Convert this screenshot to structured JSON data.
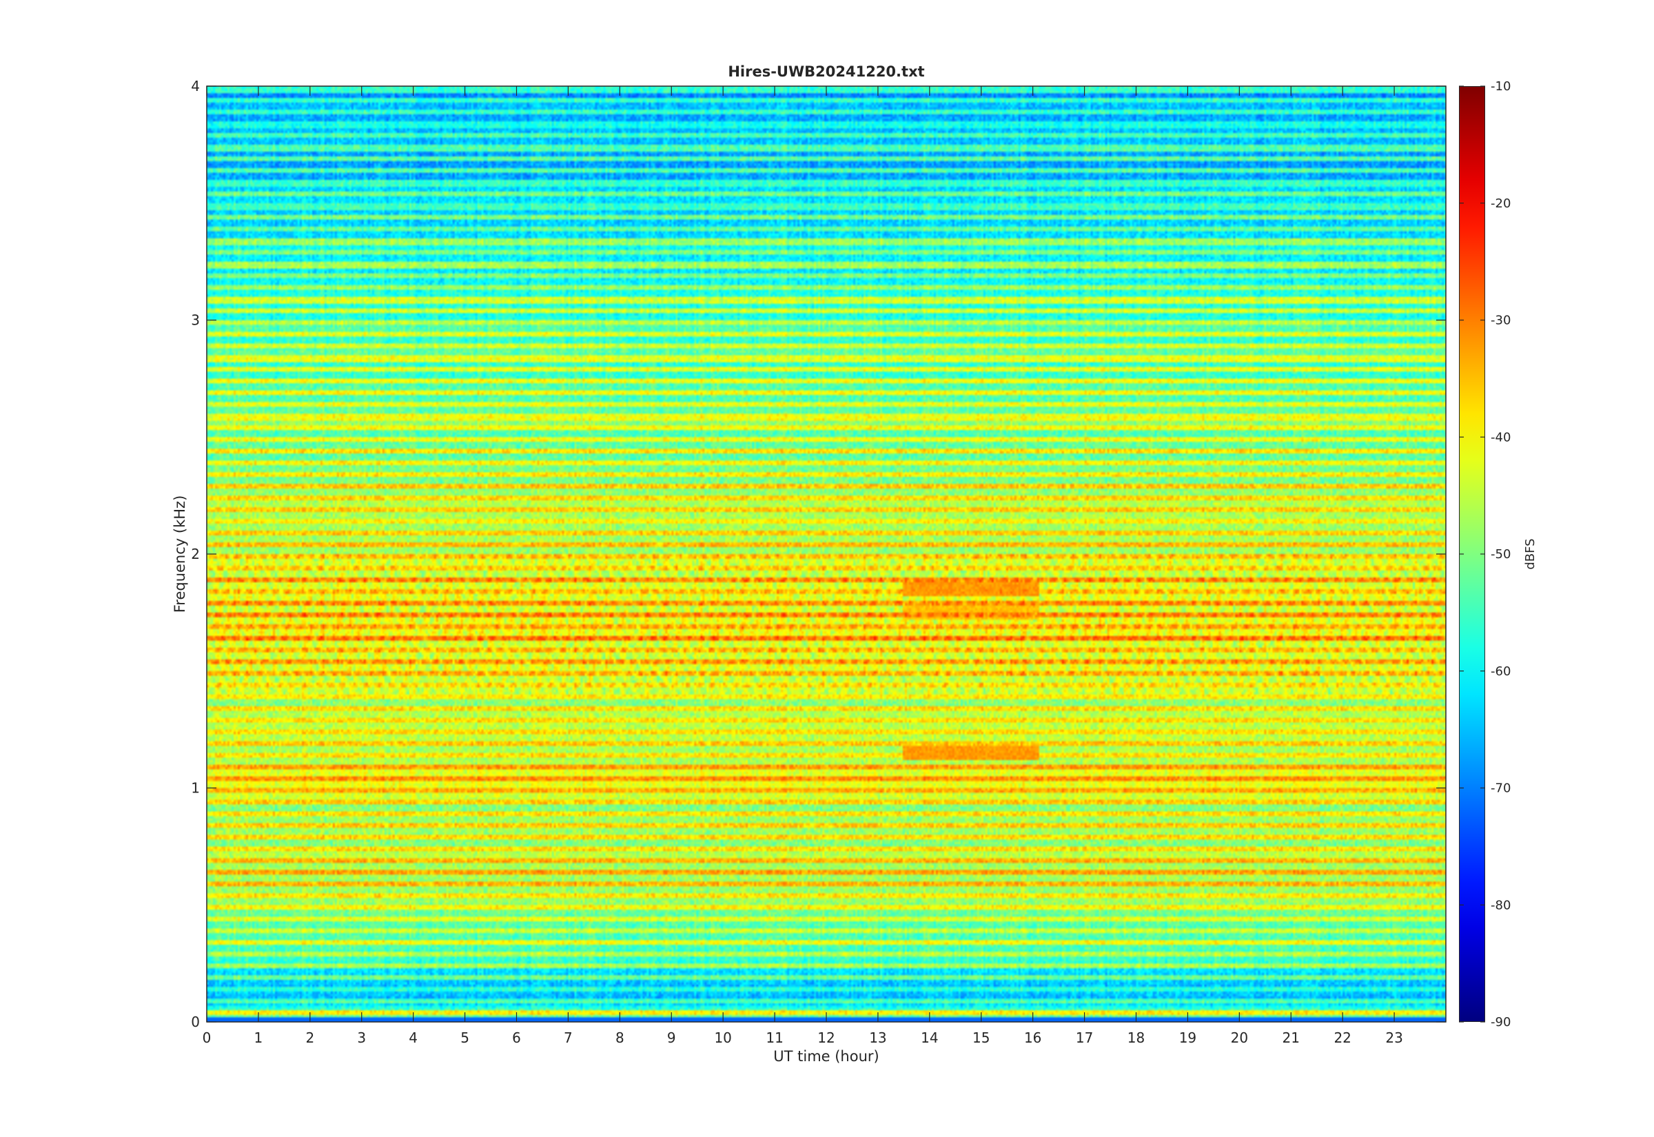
{
  "chart_data": {
    "type": "heatmap",
    "title": "Hires-UWB20241220.txt",
    "xlabel": "UT time (hour)",
    "ylabel": "Frequency (kHz)",
    "xlim": [
      0,
      24
    ],
    "ylim": [
      0,
      4
    ],
    "x_ticks": [
      "0",
      "1",
      "2",
      "3",
      "4",
      "5",
      "6",
      "7",
      "8",
      "9",
      "10",
      "11",
      "12",
      "13",
      "14",
      "15",
      "16",
      "17",
      "18",
      "19",
      "20",
      "21",
      "22",
      "23"
    ],
    "y_ticks": [
      "0",
      "1",
      "2",
      "3",
      "4"
    ],
    "colorbar": {
      "label": "dBFS",
      "range": [
        -90,
        -10
      ],
      "ticks": [
        "-10",
        "-20",
        "-30",
        "-40",
        "-50",
        "-60",
        "-70",
        "-80",
        "-90"
      ],
      "colormap": "jet"
    },
    "grid": false,
    "band_levels_dbfs": [
      {
        "freq_khz": 0.05,
        "level": -45
      },
      {
        "freq_khz": 0.1,
        "level": -62
      },
      {
        "freq_khz": 0.3,
        "level": -50
      },
      {
        "freq_khz": 0.55,
        "level": -42
      },
      {
        "freq_khz": 0.65,
        "level": -38
      },
      {
        "freq_khz": 0.75,
        "level": -44
      },
      {
        "freq_khz": 1.05,
        "level": -38
      },
      {
        "freq_khz": 1.15,
        "level": -40
      },
      {
        "freq_khz": 1.35,
        "level": -42
      },
      {
        "freq_khz": 1.55,
        "level": -38
      },
      {
        "freq_khz": 1.65,
        "level": -37
      },
      {
        "freq_khz": 1.85,
        "level": -37
      },
      {
        "freq_khz": 1.95,
        "level": -40
      },
      {
        "freq_khz": 2.45,
        "level": -44
      },
      {
        "freq_khz": 3.0,
        "level": -50
      },
      {
        "freq_khz": 3.5,
        "level": -58
      },
      {
        "freq_khz": 3.9,
        "level": -62
      }
    ],
    "events": [
      {
        "description_text": "",
        "x_range": [
          13.5,
          16.1
        ],
        "freq_khz": 1.15,
        "level": -32
      },
      {
        "description_text": "",
        "x_range": [
          13.5,
          16.1
        ],
        "freq_khz": 1.75,
        "level": -35
      },
      {
        "description_text": "",
        "x_range": [
          13.5,
          16.1
        ],
        "freq_khz": 1.85,
        "level": -32
      }
    ]
  }
}
